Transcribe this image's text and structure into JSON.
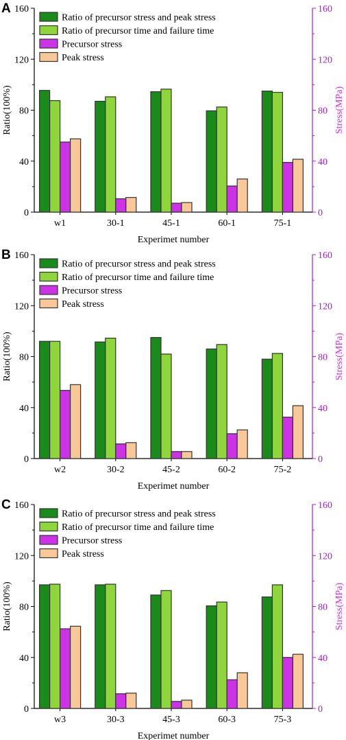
{
  "chart_data": [
    {
      "type": "bar",
      "panel": "A",
      "categories": [
        "w1",
        "30-1",
        "45-1",
        "60-1",
        "75-1"
      ],
      "series": [
        {
          "name": "Ratio of precursor stress and peak stress",
          "axis": "left",
          "color": "#1a8a1a",
          "values": [
            95.5,
            87,
            94.5,
            79.5,
            95
          ]
        },
        {
          "name": "Ratio of precursor time and failure time",
          "axis": "left",
          "color": "#8fd63c",
          "values": [
            87.5,
            90.5,
            96.5,
            82.5,
            94
          ]
        },
        {
          "name": "Precursor stress",
          "axis": "right",
          "color": "#cc33e6",
          "values": [
            55,
            10.5,
            7,
            20.5,
            39
          ]
        },
        {
          "name": "Peak stress",
          "axis": "right",
          "color": "#f8c898",
          "values": [
            57.5,
            11.5,
            7.5,
            26,
            41.5
          ]
        }
      ],
      "xlabel": "Experimet number",
      "ylabel": "Ratio(100%)",
      "y2label": "Stress(MPa)",
      "ylim": [
        0,
        160
      ],
      "y2lim": [
        0,
        160
      ],
      "yticks": [
        "0",
        "40",
        "80",
        "120",
        "160"
      ],
      "legend_position": "top-left",
      "grid": false
    },
    {
      "type": "bar",
      "panel": "B",
      "categories": [
        "w2",
        "30-2",
        "45-2",
        "60-2",
        "75-2"
      ],
      "series": [
        {
          "name": "Ratio of precursor stress and peak stress",
          "axis": "left",
          "color": "#1a8a1a",
          "values": [
            92,
            91.5,
            95,
            86,
            78
          ]
        },
        {
          "name": "Ratio of precursor time and failure time",
          "axis": "left",
          "color": "#8fd63c",
          "values": [
            92,
            94.5,
            82,
            89.5,
            82.5
          ]
        },
        {
          "name": "Precursor stress",
          "axis": "right",
          "color": "#cc33e6",
          "values": [
            53.5,
            11.5,
            5.5,
            19.5,
            32.5
          ]
        },
        {
          "name": "Peak stress",
          "axis": "right",
          "color": "#f8c898",
          "values": [
            58,
            12.5,
            5.5,
            22.5,
            41.5
          ]
        }
      ],
      "xlabel": "Experimet number",
      "ylabel": "Ratio(100%)",
      "y2label": "Stress(MPa)",
      "ylim": [
        0,
        160
      ],
      "y2lim": [
        0,
        160
      ],
      "yticks": [
        "0",
        "40",
        "80",
        "120",
        "160"
      ],
      "legend_position": "top-left",
      "grid": false
    },
    {
      "type": "bar",
      "panel": "C",
      "categories": [
        "w3",
        "30-3",
        "45-3",
        "60-3",
        "75-3"
      ],
      "series": [
        {
          "name": "Ratio of precursor stress and peak stress",
          "axis": "left",
          "color": "#1a8a1a",
          "values": [
            97,
            97,
            89,
            80.5,
            87.5
          ]
        },
        {
          "name": "Ratio of precursor time and failure time",
          "axis": "left",
          "color": "#8fd63c",
          "values": [
            97.5,
            97.5,
            92.5,
            83.5,
            97
          ]
        },
        {
          "name": "Precursor stress",
          "axis": "right",
          "color": "#cc33e6",
          "values": [
            62.5,
            11.5,
            5.5,
            22.5,
            40
          ]
        },
        {
          "name": "Peak stress",
          "axis": "right",
          "color": "#f8c898",
          "values": [
            64.5,
            12,
            6.5,
            28,
            42.5
          ]
        }
      ],
      "xlabel": "Experimet number",
      "ylabel": "Ratio(100%)",
      "y2label": "Stress(MPa)",
      "ylim": [
        0,
        160
      ],
      "y2lim": [
        0,
        160
      ],
      "yticks": [
        "0",
        "40",
        "80",
        "120",
        "160"
      ],
      "legend_position": "top-left",
      "grid": false
    }
  ],
  "colors": {
    "left_axis": "#000000",
    "right_axis": "#a020c8",
    "right_axis_title": "#c832dc",
    "bar_outline": "#333333"
  }
}
